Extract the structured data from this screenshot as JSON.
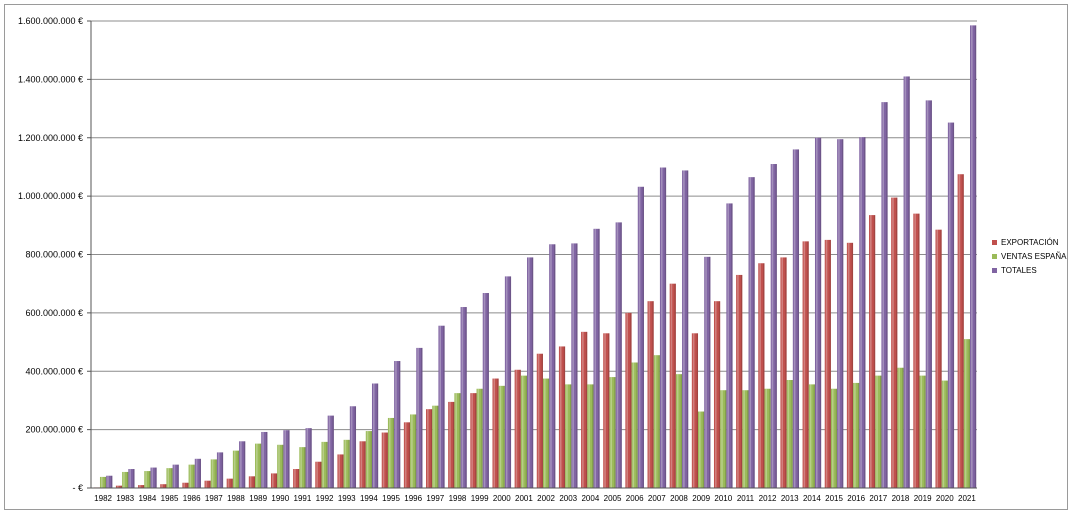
{
  "chart_data": {
    "type": "bar",
    "title": "",
    "xlabel": "",
    "ylabel": "",
    "ylim": [
      0,
      1600000000
    ],
    "y_tick_step": 200000000,
    "y_tick_labels": [
      "-   €",
      "200.000.000 €",
      "400.000.000 €",
      "600.000.000 €",
      "800.000.000 €",
      "1.000.000.000 €",
      "1.200.000.000 €",
      "1.400.000.000 €",
      "1.600.000.000 €"
    ],
    "grid": true,
    "legend_position": "right",
    "categories": [
      "1982",
      "1983",
      "1984",
      "1985",
      "1986",
      "1987",
      "1988",
      "1989",
      "1990",
      "1991",
      "1992",
      "1993",
      "1994",
      "1995",
      "1996",
      "1997",
      "1998",
      "1999",
      "2000",
      "2001",
      "2002",
      "2003",
      "2004",
      "2005",
      "2006",
      "2007",
      "2008",
      "2009",
      "2010",
      "2011",
      "2012",
      "2013",
      "2014",
      "2015",
      "2016",
      "2017",
      "2018",
      "2019",
      "2020",
      "2021"
    ],
    "series": [
      {
        "name": "EXPORTACIÓN",
        "color": "#c0504d",
        "values": [
          2000000,
          8000000,
          10000000,
          13000000,
          18000000,
          25000000,
          32000000,
          40000000,
          50000000,
          65000000,
          90000000,
          115000000,
          160000000,
          190000000,
          225000000,
          270000000,
          295000000,
          325000000,
          375000000,
          405000000,
          460000000,
          485000000,
          535000000,
          530000000,
          600000000,
          640000000,
          700000000,
          530000000,
          640000000,
          730000000,
          770000000,
          790000000,
          845000000,
          850000000,
          840000000,
          935000000,
          995000000,
          940000000,
          885000000,
          1075000000
        ]
      },
      {
        "name": "VENTAS ESPAÑA",
        "color": "#9bbb59",
        "values": [
          38000000,
          55000000,
          58000000,
          68000000,
          80000000,
          98000000,
          128000000,
          152000000,
          148000000,
          140000000,
          158000000,
          165000000,
          195000000,
          240000000,
          252000000,
          282000000,
          325000000,
          340000000,
          350000000,
          385000000,
          375000000,
          355000000,
          355000000,
          380000000,
          430000000,
          455000000,
          390000000,
          262000000,
          335000000,
          335000000,
          340000000,
          370000000,
          355000000,
          340000000,
          360000000,
          385000000,
          412000000,
          385000000,
          368000000,
          510000000
        ]
      },
      {
        "name": "TOTALES",
        "color": "#8064a2",
        "values": [
          42000000,
          65000000,
          70000000,
          80000000,
          100000000,
          122000000,
          160000000,
          192000000,
          198000000,
          205000000,
          248000000,
          280000000,
          358000000,
          435000000,
          480000000,
          556000000,
          620000000,
          668000000,
          725000000,
          790000000,
          835000000,
          838000000,
          888000000,
          910000000,
          1032000000,
          1098000000,
          1088000000,
          792000000,
          975000000,
          1065000000,
          1110000000,
          1160000000,
          1200000000,
          1195000000,
          1202000000,
          1322000000,
          1410000000,
          1328000000,
          1252000000,
          1585000000
        ]
      }
    ]
  }
}
